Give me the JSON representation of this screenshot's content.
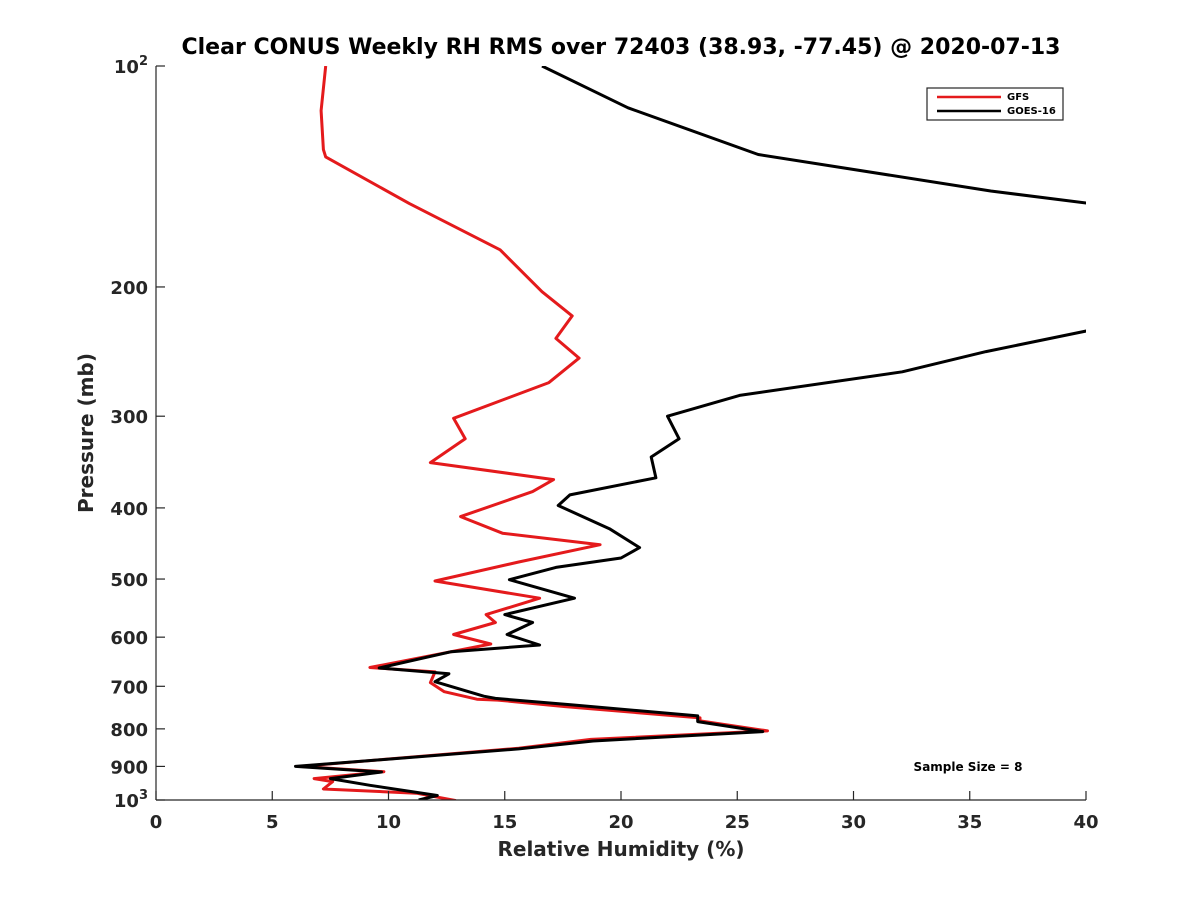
{
  "chart_data": {
    "type": "line",
    "title": "Clear CONUS Weekly RH RMS over 72403 (38.93, -77.45) @ 2020-07-13",
    "xlabel": "Relative Humidity (%)",
    "ylabel": "Pressure (mb)",
    "xlim": [
      0,
      40
    ],
    "ylim": [
      100,
      1000
    ],
    "yscale": "log",
    "y_reversed": true,
    "grid": false,
    "legend_position": "top-right",
    "x_ticks": [
      0,
      5,
      10,
      15,
      20,
      25,
      30,
      35,
      40
    ],
    "x_tick_labels": [
      "0",
      "5",
      "10",
      "15",
      "20",
      "25",
      "30",
      "35",
      "40"
    ],
    "y_ticks": [
      100,
      200,
      300,
      400,
      500,
      600,
      700,
      800,
      900,
      1000
    ],
    "y_tick_labels": [
      {
        "base": "10",
        "exp": "2"
      },
      {
        "base": "200",
        "exp": ""
      },
      {
        "base": "300",
        "exp": ""
      },
      {
        "base": "400",
        "exp": ""
      },
      {
        "base": "500",
        "exp": ""
      },
      {
        "base": "600",
        "exp": ""
      },
      {
        "base": "700",
        "exp": ""
      },
      {
        "base": "800",
        "exp": ""
      },
      {
        "base": "900",
        "exp": ""
      },
      {
        "base": "10",
        "exp": "3"
      }
    ],
    "series": [
      {
        "name": "GFS",
        "color": "#e41a1c",
        "points": [
          [
            7.3,
            100
          ],
          [
            7.1,
            115
          ],
          [
            7.2,
            130
          ],
          [
            7.3,
            133
          ],
          [
            10.9,
            154
          ],
          [
            14.8,
            178
          ],
          [
            16.6,
            203
          ],
          [
            17.9,
            219
          ],
          [
            17.2,
            235
          ],
          [
            18.2,
            250
          ],
          [
            16.9,
            270
          ],
          [
            12.8,
            302
          ],
          [
            13.3,
            322
          ],
          [
            11.8,
            347
          ],
          [
            17.1,
            366
          ],
          [
            16.2,
            380
          ],
          [
            13.1,
            411
          ],
          [
            14.9,
            433
          ],
          [
            19.1,
            449
          ],
          [
            15.6,
            474
          ],
          [
            12.0,
            503
          ],
          [
            16.5,
            531
          ],
          [
            14.2,
            559
          ],
          [
            14.6,
            573
          ],
          [
            12.8,
            595
          ],
          [
            14.4,
            613
          ],
          [
            9.2,
            660
          ],
          [
            12.0,
            669
          ],
          [
            11.8,
            692
          ],
          [
            12.4,
            712
          ],
          [
            13.8,
            729
          ],
          [
            14.7,
            731
          ],
          [
            17.6,
            746
          ],
          [
            23.4,
            773
          ],
          [
            23.4,
            780
          ],
          [
            26.3,
            805
          ],
          [
            18.7,
            827
          ],
          [
            15.6,
            850
          ],
          [
            6.2,
            900
          ],
          [
            9.8,
            915
          ],
          [
            6.8,
            935
          ],
          [
            7.6,
            944
          ],
          [
            7.2,
            966
          ],
          [
            11.2,
            979
          ],
          [
            12.9,
            1002
          ]
        ]
      },
      {
        "name": "GOES-16",
        "color": "#000000",
        "points": [
          [
            16.6,
            100
          ],
          [
            20.3,
            114
          ],
          [
            25.9,
            132
          ],
          [
            35.9,
            148
          ],
          [
            40.2,
            154
          ],
          [
            40.2,
            229
          ],
          [
            35.7,
            245
          ],
          [
            32.1,
            261
          ],
          [
            25.1,
            281
          ],
          [
            22.0,
            300
          ],
          [
            22.5,
            322
          ],
          [
            21.3,
            341
          ],
          [
            21.5,
            364
          ],
          [
            17.8,
            384
          ],
          [
            17.3,
            397
          ],
          [
            19.5,
            427
          ],
          [
            20.8,
            453
          ],
          [
            20.0,
            468
          ],
          [
            17.2,
            482
          ],
          [
            15.2,
            501
          ],
          [
            18.0,
            531
          ],
          [
            15.0,
            559
          ],
          [
            16.2,
            573
          ],
          [
            15.1,
            595
          ],
          [
            16.5,
            615
          ],
          [
            12.7,
            628
          ],
          [
            9.6,
            661
          ],
          [
            12.6,
            673
          ],
          [
            12.0,
            690
          ],
          [
            14.1,
            722
          ],
          [
            14.6,
            727
          ],
          [
            17.9,
            742
          ],
          [
            23.3,
            768
          ],
          [
            23.3,
            782
          ],
          [
            26.1,
            807
          ],
          [
            18.8,
            831
          ],
          [
            15.6,
            852
          ],
          [
            6.0,
            900
          ],
          [
            9.7,
            916
          ],
          [
            7.5,
            935
          ],
          [
            9.2,
            955
          ],
          [
            12.1,
            986
          ],
          [
            11.3,
            1000
          ]
        ]
      }
    ],
    "legend": [
      "GFS",
      "GOES-16"
    ],
    "annotation": "Sample Size = 8"
  }
}
